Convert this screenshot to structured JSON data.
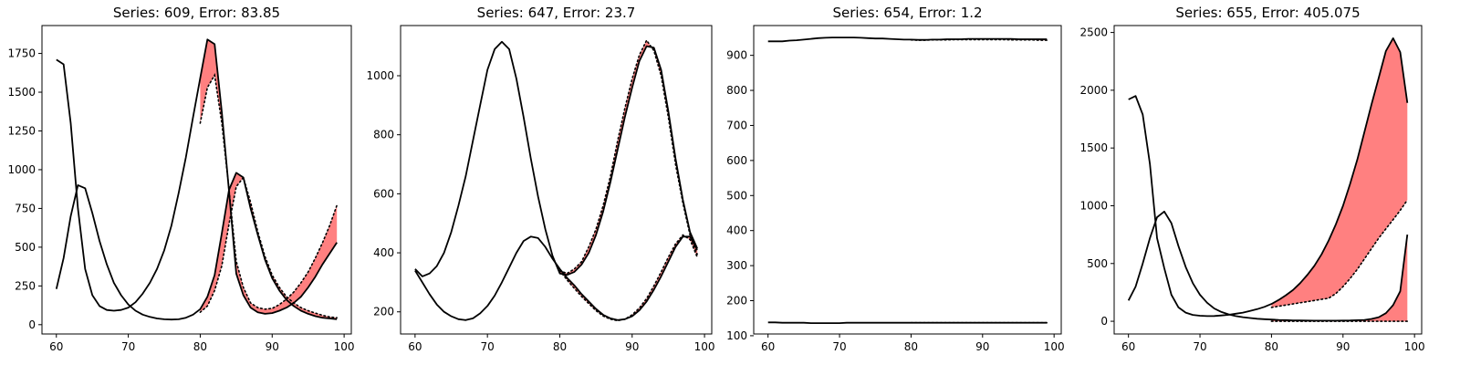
{
  "chart_data": [
    {
      "type": "line",
      "title": "Series: 609, Error: 83.85",
      "xlabel": "",
      "ylabel": "",
      "xlim": [
        58,
        101
      ],
      "ylim": [
        -60,
        1930
      ],
      "xticks": [
        60,
        70,
        80,
        90,
        100
      ],
      "yticks": [
        0,
        250,
        500,
        750,
        1000,
        1250,
        1500,
        1750
      ],
      "fill_color": "#ff8080",
      "series": [
        {
          "x": [
            60,
            61,
            62,
            63,
            64,
            65,
            66,
            67,
            68,
            69,
            70,
            71,
            72,
            73,
            74,
            75,
            76,
            77,
            78,
            79,
            80,
            81,
            82,
            83,
            84,
            85,
            86,
            87,
            88,
            89,
            90,
            91,
            92,
            93,
            94,
            95,
            96,
            97,
            98,
            99
          ],
          "values": [
            230,
            430,
            700,
            900,
            880,
            720,
            540,
            390,
            270,
            190,
            130,
            90,
            65,
            50,
            40,
            35,
            33,
            35,
            45,
            65,
            100,
            180,
            320,
            590,
            870,
            980,
            950,
            750,
            580,
            420,
            300,
            220,
            160,
            120,
            90,
            70,
            55,
            45,
            40,
            35
          ]
        },
        {
          "x": [
            60,
            61,
            62,
            63,
            64,
            65,
            66,
            67,
            68,
            69,
            70,
            71,
            72,
            73,
            74,
            75,
            76,
            77,
            78,
            79,
            80,
            81,
            82,
            83,
            84,
            85,
            86,
            87,
            88,
            89,
            90,
            91,
            92,
            93,
            94,
            95,
            96,
            97,
            98,
            99
          ],
          "values": [
            1710,
            1680,
            1300,
            750,
            360,
            190,
            120,
            95,
            90,
            95,
            110,
            145,
            200,
            270,
            360,
            480,
            640,
            850,
            1080,
            1340,
            1590,
            1840,
            1810,
            1370,
            860,
            330,
            190,
            110,
            80,
            70,
            75,
            90,
            110,
            140,
            180,
            240,
            310,
            390,
            460,
            530
          ]
        }
      ],
      "predictions": [
        {
          "x": [
            80,
            81,
            82,
            83,
            84,
            85,
            86,
            87,
            88,
            89,
            90,
            91,
            92,
            93,
            94,
            95,
            96,
            97,
            98,
            99
          ],
          "values": [
            80,
            120,
            220,
            380,
            650,
            890,
            950,
            790,
            600,
            440,
            320,
            240,
            180,
            140,
            110,
            90,
            75,
            60,
            50,
            45
          ]
        },
        {
          "x": [
            80,
            81,
            82,
            83,
            84,
            85,
            86,
            87,
            88,
            89,
            90,
            91,
            92,
            93,
            94,
            95,
            96,
            97,
            98,
            99
          ],
          "values": [
            1300,
            1530,
            1610,
            1300,
            870,
            410,
            240,
            140,
            110,
            100,
            105,
            130,
            165,
            210,
            270,
            340,
            430,
            530,
            640,
            770
          ]
        }
      ]
    },
    {
      "type": "line",
      "title": "Series: 647, Error: 23.7",
      "xlabel": "",
      "ylabel": "",
      "xlim": [
        58,
        101
      ],
      "ylim": [
        125,
        1170
      ],
      "xticks": [
        60,
        70,
        80,
        90,
        100
      ],
      "yticks": [
        200,
        400,
        600,
        800,
        1000
      ],
      "fill_color": "#ff8080",
      "series": [
        {
          "x": [
            60,
            61,
            62,
            63,
            64,
            65,
            66,
            67,
            68,
            69,
            70,
            71,
            72,
            73,
            74,
            75,
            76,
            77,
            78,
            79,
            80,
            81,
            82,
            83,
            84,
            85,
            86,
            87,
            88,
            89,
            90,
            91,
            92,
            93,
            94,
            95,
            96,
            97,
            98,
            99
          ],
          "values": [
            345,
            320,
            330,
            355,
            400,
            470,
            560,
            660,
            780,
            900,
            1020,
            1090,
            1115,
            1090,
            990,
            860,
            720,
            590,
            480,
            390,
            330,
            325,
            335,
            360,
            400,
            460,
            540,
            640,
            750,
            860,
            960,
            1050,
            1100,
            1095,
            1020,
            880,
            720,
            580,
            470,
            415
          ]
        },
        {
          "x": [
            60,
            61,
            62,
            63,
            64,
            65,
            66,
            67,
            68,
            69,
            70,
            71,
            72,
            73,
            74,
            75,
            76,
            77,
            78,
            79,
            80,
            81,
            82,
            83,
            84,
            85,
            86,
            87,
            88,
            89,
            90,
            91,
            92,
            93,
            94,
            95,
            96,
            97,
            98,
            99
          ],
          "values": [
            340,
            300,
            260,
            225,
            200,
            185,
            175,
            172,
            178,
            195,
            220,
            255,
            300,
            350,
            400,
            440,
            455,
            450,
            420,
            380,
            345,
            315,
            290,
            260,
            235,
            210,
            190,
            178,
            172,
            175,
            185,
            205,
            235,
            275,
            320,
            370,
            420,
            455,
            455,
            410
          ]
        }
      ],
      "predictions": [
        {
          "x": [
            80,
            81,
            82,
            83,
            84,
            85,
            86,
            87,
            88,
            89,
            90,
            91,
            92,
            93,
            94,
            95,
            96,
            97,
            98,
            99
          ],
          "values": [
            340,
            330,
            345,
            370,
            420,
            480,
            560,
            660,
            780,
            890,
            990,
            1070,
            1120,
            1085,
            1000,
            860,
            700,
            570,
            460,
            395
          ]
        },
        {
          "x": [
            80,
            81,
            82,
            83,
            84,
            85,
            86,
            87,
            88,
            89,
            90,
            91,
            92,
            93,
            94,
            95,
            96,
            97,
            98,
            99
          ],
          "values": [
            340,
            308,
            280,
            252,
            228,
            204,
            186,
            175,
            170,
            175,
            190,
            213,
            245,
            288,
            335,
            385,
            430,
            460,
            445,
            385
          ]
        }
      ]
    },
    {
      "type": "line",
      "title": "Series: 654, Error: 1.2",
      "xlabel": "",
      "ylabel": "",
      "xlim": [
        58,
        101
      ],
      "ylim": [
        105,
        985
      ],
      "xticks": [
        60,
        70,
        80,
        90,
        100
      ],
      "yticks": [
        100,
        200,
        300,
        400,
        500,
        600,
        700,
        800,
        900
      ],
      "fill_color": "#ff8080",
      "series": [
        {
          "x": [
            60,
            61,
            62,
            63,
            64,
            65,
            66,
            67,
            68,
            69,
            70,
            71,
            72,
            73,
            74,
            75,
            76,
            77,
            78,
            79,
            80,
            81,
            82,
            83,
            84,
            85,
            86,
            87,
            88,
            89,
            90,
            91,
            92,
            93,
            94,
            95,
            96,
            97,
            98,
            99
          ],
          "values": [
            940,
            940,
            940,
            942,
            943,
            945,
            947,
            949,
            950,
            951,
            951,
            951,
            951,
            950,
            949,
            948,
            948,
            947,
            946,
            945,
            945,
            944,
            944,
            945,
            945,
            946,
            946,
            946,
            947,
            947,
            947,
            947,
            947,
            947,
            947,
            946,
            946,
            946,
            946,
            946
          ]
        },
        {
          "x": [
            60,
            61,
            62,
            63,
            64,
            65,
            66,
            67,
            68,
            69,
            70,
            71,
            72,
            73,
            74,
            75,
            76,
            77,
            78,
            79,
            80,
            81,
            82,
            83,
            84,
            85,
            86,
            87,
            88,
            89,
            90,
            91,
            92,
            93,
            94,
            95,
            96,
            97,
            98,
            99
          ],
          "values": [
            138,
            138,
            137,
            137,
            137,
            137,
            136,
            136,
            136,
            136,
            136,
            137,
            137,
            137,
            137,
            137,
            137,
            137,
            137,
            137,
            137,
            137,
            137,
            137,
            137,
            137,
            137,
            137,
            137,
            137,
            137,
            137,
            137,
            137,
            137,
            137,
            137,
            137,
            137,
            137
          ]
        }
      ],
      "predictions": [
        {
          "x": [
            80,
            81,
            82,
            83,
            84,
            85,
            86,
            87,
            88,
            89,
            90,
            91,
            92,
            93,
            94,
            95,
            96,
            97,
            98,
            99
          ],
          "values": [
            944,
            943,
            943,
            944,
            944,
            944,
            945,
            945,
            945,
            945,
            945,
            945,
            945,
            945,
            944,
            944,
            944,
            944,
            943,
            943
          ]
        },
        {
          "x": [
            80,
            81,
            82,
            83,
            84,
            85,
            86,
            87,
            88,
            89,
            90,
            91,
            92,
            93,
            94,
            95,
            96,
            97,
            98,
            99
          ],
          "values": [
            137,
            137,
            137,
            137,
            137,
            137,
            137,
            137,
            137,
            137,
            137,
            137,
            137,
            137,
            137,
            137,
            137,
            137,
            137,
            137
          ]
        }
      ]
    },
    {
      "type": "line",
      "title": "Series: 655, Error: 405.075",
      "xlabel": "",
      "ylabel": "",
      "xlim": [
        58,
        101
      ],
      "ylim": [
        -110,
        2560
      ],
      "xticks": [
        60,
        70,
        80,
        90,
        100
      ],
      "yticks": [
        0,
        500,
        1000,
        1500,
        2000,
        2500
      ],
      "fill_color": "#ff8080",
      "series": [
        {
          "x": [
            60,
            61,
            62,
            63,
            64,
            65,
            66,
            67,
            68,
            69,
            70,
            71,
            72,
            73,
            74,
            75,
            76,
            77,
            78,
            79,
            80,
            81,
            82,
            83,
            84,
            85,
            86,
            87,
            88,
            89,
            90,
            91,
            92,
            93,
            94,
            95,
            96,
            97,
            98,
            99
          ],
          "values": [
            180,
            300,
            500,
            720,
            900,
            950,
            850,
            650,
            470,
            330,
            230,
            160,
            110,
            80,
            60,
            45,
            35,
            28,
            22,
            18,
            15,
            12,
            10,
            8,
            7,
            6,
            5,
            5,
            5,
            5,
            6,
            7,
            9,
            12,
            20,
            35,
            70,
            140,
            260,
            750
          ]
        },
        {
          "x": [
            60,
            61,
            62,
            63,
            64,
            65,
            66,
            67,
            68,
            69,
            70,
            71,
            72,
            73,
            74,
            75,
            76,
            77,
            78,
            79,
            80,
            81,
            82,
            83,
            84,
            85,
            86,
            87,
            88,
            89,
            90,
            91,
            92,
            93,
            94,
            95,
            96,
            97,
            98,
            99
          ],
          "values": [
            1920,
            1950,
            1790,
            1360,
            720,
            460,
            230,
            120,
            75,
            55,
            48,
            45,
            46,
            50,
            56,
            65,
            75,
            90,
            105,
            125,
            150,
            185,
            225,
            270,
            330,
            400,
            480,
            580,
            700,
            840,
            1000,
            1190,
            1400,
            1640,
            1880,
            2110,
            2340,
            2450,
            2330,
            1890
          ]
        }
      ],
      "predictions": [
        {
          "x": [
            80,
            81,
            82,
            83,
            84,
            85,
            86,
            87,
            88,
            89,
            90,
            91,
            92,
            93,
            94,
            95,
            96,
            97,
            98,
            99
          ],
          "values": [
            0,
            0,
            0,
            0,
            0,
            0,
            0,
            0,
            0,
            0,
            0,
            0,
            0,
            0,
            0,
            0,
            0,
            0,
            0,
            0
          ]
        },
        {
          "x": [
            80,
            81,
            82,
            83,
            84,
            85,
            86,
            87,
            88,
            89,
            90,
            91,
            92,
            93,
            94,
            95,
            96,
            97,
            98,
            99
          ],
          "values": [
            120,
            130,
            140,
            150,
            160,
            170,
            180,
            190,
            200,
            240,
            300,
            370,
            450,
            540,
            630,
            720,
            800,
            880,
            960,
            1050
          ]
        }
      ]
    }
  ]
}
